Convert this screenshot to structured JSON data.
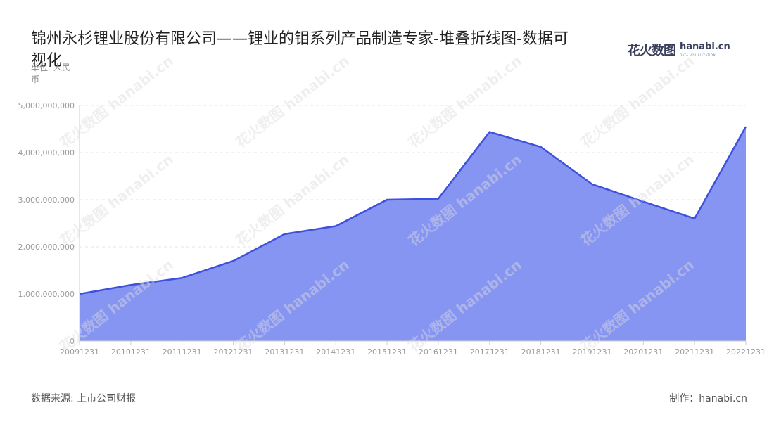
{
  "header": {
    "title": "锦州永杉锂业股份有限公司——锂业的钼系列产品制造专家-堆叠折线图-数据可视化",
    "unit": "单位: 人民币"
  },
  "logo": {
    "zh": "花火数图",
    "en": "hanabi.cn",
    "tagline": "DATA VISUALIZATION"
  },
  "footer": {
    "source": "数据来源: 上市公司财报",
    "credit": "制作：hanabi.cn"
  },
  "colors": {
    "area_fill": "#8795f2",
    "line": "#3d51dc",
    "grid": "#e4e4e4"
  },
  "chart_data": {
    "type": "area",
    "title": "锦州永杉锂业股份有限公司——锂业的钼系列产品制造专家-堆叠折线图-数据可视化",
    "ylabel": "单位: 人民币",
    "xlabel": "",
    "stacked": true,
    "grid": true,
    "ylim": [
      0,
      5000000000
    ],
    "yticks": [
      0,
      1000000000,
      2000000000,
      3000000000,
      4000000000,
      5000000000
    ],
    "ytick_labels": [
      "0",
      "1,000,000,000",
      "2,000,000,000",
      "3,000,000,000",
      "4,000,000,000",
      "5,000,000,000"
    ],
    "categories": [
      "20091231",
      "20101231",
      "20111231",
      "20121231",
      "20131231",
      "20141231",
      "20151231",
      "20161231",
      "20171231",
      "20181231",
      "20191231",
      "20201231",
      "20211231",
      "20221231"
    ],
    "series": [
      {
        "values": [
          1000000000,
          1190000000,
          1340000000,
          1700000000,
          2270000000,
          2440000000,
          3000000000,
          3020000000,
          4440000000,
          4120000000,
          3330000000,
          2960000000,
          2600000000,
          4550000000
        ]
      }
    ]
  }
}
